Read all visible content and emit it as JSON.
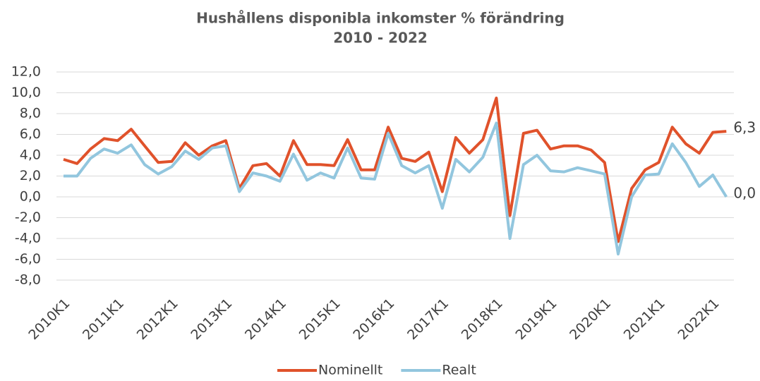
{
  "chart_data": {
    "type": "line",
    "title": "Hushållens disponibla inkomster % förändring",
    "subtitle": "2010 - 2022",
    "categories": [
      "2010K1",
      null,
      null,
      null,
      "2011K1",
      null,
      null,
      null,
      "2012K1",
      null,
      null,
      null,
      "2013K1",
      null,
      null,
      null,
      "2014K1",
      null,
      null,
      null,
      "2015K1",
      null,
      null,
      null,
      "2016K1",
      null,
      null,
      null,
      "2017K1",
      null,
      null,
      null,
      "2018K1",
      null,
      null,
      null,
      "2019K1",
      null,
      null,
      null,
      "2020K1",
      null,
      null,
      null,
      "2021K1",
      null,
      null,
      null,
      "2022K1",
      null
    ],
    "series": [
      {
        "name": "Nominellt",
        "color": "#e0522b",
        "end_label": "6,3",
        "values": [
          3.6,
          3.2,
          4.6,
          5.6,
          5.4,
          6.5,
          4.9,
          3.3,
          3.4,
          5.2,
          4.0,
          4.9,
          5.4,
          0.8,
          3.0,
          3.2,
          2.0,
          5.4,
          3.1,
          3.1,
          3.0,
          5.5,
          2.6,
          2.6,
          6.7,
          3.7,
          3.4,
          4.3,
          0.5,
          5.7,
          4.2,
          5.5,
          9.5,
          -1.8,
          6.1,
          6.4,
          4.6,
          4.9,
          4.9,
          4.5,
          3.3,
          -4.3,
          0.8,
          2.6,
          3.3,
          6.7,
          5.1,
          4.2,
          6.2,
          6.3
        ]
      },
      {
        "name": "Realt",
        "color": "#92c6de",
        "end_label": "0,0",
        "values": [
          2.0,
          2.0,
          3.7,
          4.6,
          4.2,
          5.0,
          3.1,
          2.2,
          2.9,
          4.4,
          3.6,
          4.7,
          4.9,
          0.5,
          2.3,
          2.0,
          1.5,
          4.1,
          1.6,
          2.3,
          1.8,
          4.7,
          1.8,
          1.7,
          6.1,
          3.0,
          2.3,
          3.0,
          -1.1,
          3.6,
          2.4,
          3.8,
          7.1,
          -4.0,
          3.1,
          4.0,
          2.5,
          2.4,
          2.8,
          2.5,
          2.2,
          -5.5,
          0.0,
          2.1,
          2.2,
          5.1,
          3.3,
          1.0,
          2.1,
          0.0
        ]
      }
    ],
    "ylim": [
      -8,
      12
    ],
    "yticks": [
      {
        "value": -8,
        "label": "-8,0"
      },
      {
        "value": -6,
        "label": "-6,0"
      },
      {
        "value": -4,
        "label": "-4,0"
      },
      {
        "value": -2,
        "label": "-2,0"
      },
      {
        "value": 0,
        "label": "0,0"
      },
      {
        "value": 2,
        "label": "2,0"
      },
      {
        "value": 4,
        "label": "4,0"
      },
      {
        "value": 6,
        "label": "6,0"
      },
      {
        "value": 8,
        "label": "8,0"
      },
      {
        "value": 10,
        "label": "10,0"
      },
      {
        "value": 12,
        "label": "12,0"
      }
    ],
    "grid": true,
    "legend": "bottom"
  }
}
